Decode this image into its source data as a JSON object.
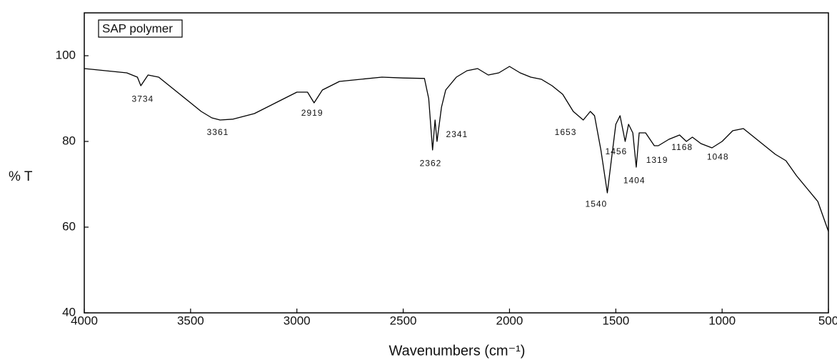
{
  "chart_data": {
    "type": "line",
    "legend_title": "SAP polymer",
    "y_label": "% T",
    "x_label": "Wavenumbers (cm⁻¹)",
    "xlim": [
      4000,
      500
    ],
    "ylim": [
      40,
      110
    ],
    "xticks": [
      4000,
      3500,
      3000,
      2500,
      2000,
      1500,
      1000,
      500
    ],
    "yticks": [
      40,
      60,
      80,
      100
    ],
    "series": [
      {
        "name": "SAP polymer",
        "color": "#000000",
        "x": [
          4000,
          3900,
          3800,
          3750,
          3734,
          3700,
          3650,
          3600,
          3550,
          3500,
          3450,
          3400,
          3361,
          3300,
          3200,
          3100,
          3000,
          2950,
          2919,
          2880,
          2800,
          2700,
          2600,
          2500,
          2400,
          2380,
          2362,
          2350,
          2341,
          2320,
          2300,
          2250,
          2200,
          2150,
          2100,
          2050,
          2000,
          1950,
          1900,
          1850,
          1800,
          1750,
          1700,
          1653,
          1620,
          1600,
          1570,
          1540,
          1520,
          1500,
          1480,
          1456,
          1440,
          1420,
          1404,
          1390,
          1360,
          1319,
          1300,
          1250,
          1200,
          1168,
          1140,
          1100,
          1048,
          1000,
          950,
          900,
          850,
          800,
          750,
          700,
          650,
          600,
          550,
          500
        ],
        "values": [
          97,
          96.5,
          96,
          95,
          93,
          95.5,
          95,
          93,
          91,
          89,
          87,
          85.5,
          85,
          85.2,
          86.5,
          89,
          91.5,
          91.5,
          89,
          92,
          94,
          94.5,
          95,
          94.8,
          94.7,
          90,
          78,
          85,
          80,
          88,
          92,
          95,
          96.5,
          97,
          95.5,
          96,
          97.5,
          96,
          95,
          94.5,
          93,
          91,
          87,
          85,
          87,
          86,
          78,
          68,
          76,
          84,
          86,
          80,
          84,
          82,
          74,
          82,
          82,
          79,
          79,
          80.5,
          81.5,
          80,
          81,
          79.5,
          78.5,
          80,
          82.5,
          83,
          81,
          79,
          77,
          75.5,
          72,
          69,
          66,
          59
        ]
      }
    ],
    "annotations": [
      {
        "label": "3734",
        "x": 3725,
        "y": 89.8
      },
      {
        "label": "3361",
        "x": 3372,
        "y": 82
      },
      {
        "label": "2919",
        "x": 2928,
        "y": 86.5
      },
      {
        "label": "2362",
        "x": 2371,
        "y": 74.8
      },
      {
        "label": "2341",
        "x": 2247,
        "y": 81.5
      },
      {
        "label": "1653",
        "x": 1736,
        "y": 82
      },
      {
        "label": "1540",
        "x": 1592,
        "y": 65.3
      },
      {
        "label": "1456",
        "x": 1498,
        "y": 77.5
      },
      {
        "label": "1404",
        "x": 1413,
        "y": 70.8
      },
      {
        "label": "1319",
        "x": 1306,
        "y": 75.5
      },
      {
        "label": "1168",
        "x": 1188,
        "y": 78.5
      },
      {
        "label": "1048",
        "x": 1020,
        "y": 76.3
      }
    ]
  }
}
